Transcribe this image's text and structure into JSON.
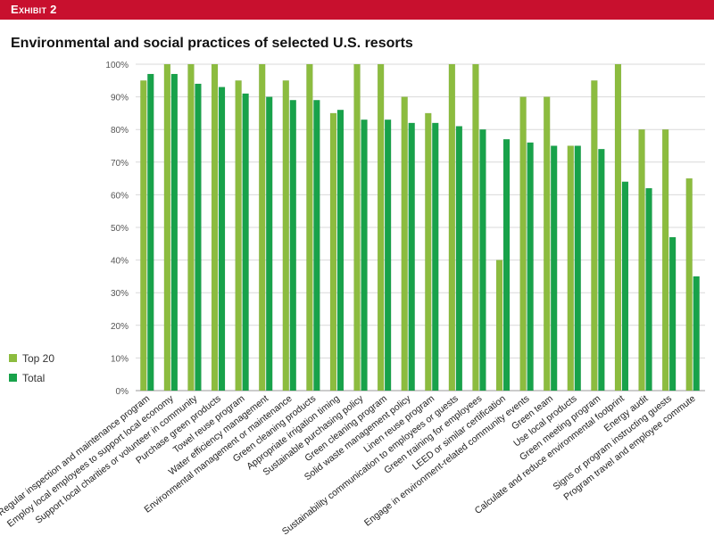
{
  "exhibit_label": "Exhibit 2",
  "colors": {
    "banner": "#c8102e",
    "top20": "#8cbc3f",
    "total": "#18a24a",
    "grid": "#d9d9d9",
    "axis_text": "#555555"
  },
  "chart_data": {
    "type": "bar",
    "title": "Environmental and social practices of selected U.S. resorts",
    "xlabel": "",
    "ylabel": "",
    "ylim": [
      0,
      100
    ],
    "yticks": [
      "0%",
      "10%",
      "20%",
      "30%",
      "40%",
      "50%",
      "60%",
      "70%",
      "80%",
      "90%",
      "100%"
    ],
    "grid": true,
    "legend_position": "left, lower",
    "categories": [
      "Regular inspection and maintenance program",
      "Employ local employees to support local economy",
      "Support local charities or volunteer in community",
      "Purchase green products",
      "Towel reuse program",
      "Water efficiency management",
      "Environmental management or maintenance",
      "Green cleaning products",
      "Appropriate irrigation timing",
      "Sustainable purchasing policy",
      "Green cleaning program",
      "Solid waste management policy",
      "Linen reuse program",
      "Sustainability communication to employees or guests",
      "Green training for employees",
      "LEED or similar certification",
      "Engage in environment-related community events",
      "Green team",
      "Use local products",
      "Green meeting program",
      "Calculate and reduce environmental footprint",
      "Energy audit",
      "Signs or program instructing guests",
      "Program travel and employee commute"
    ],
    "series": [
      {
        "name": "Top 20",
        "values": [
          95,
          100,
          100,
          100,
          95,
          100,
          95,
          100,
          85,
          100,
          100,
          90,
          85,
          100,
          100,
          40,
          90,
          90,
          75,
          95,
          100,
          80,
          80,
          65
        ]
      },
      {
        "name": "Total",
        "values": [
          97,
          97,
          94,
          93,
          91,
          90,
          89,
          89,
          86,
          83,
          83,
          82,
          82,
          81,
          80,
          77,
          76,
          75,
          75,
          74,
          64,
          62,
          47,
          35
        ]
      }
    ]
  }
}
